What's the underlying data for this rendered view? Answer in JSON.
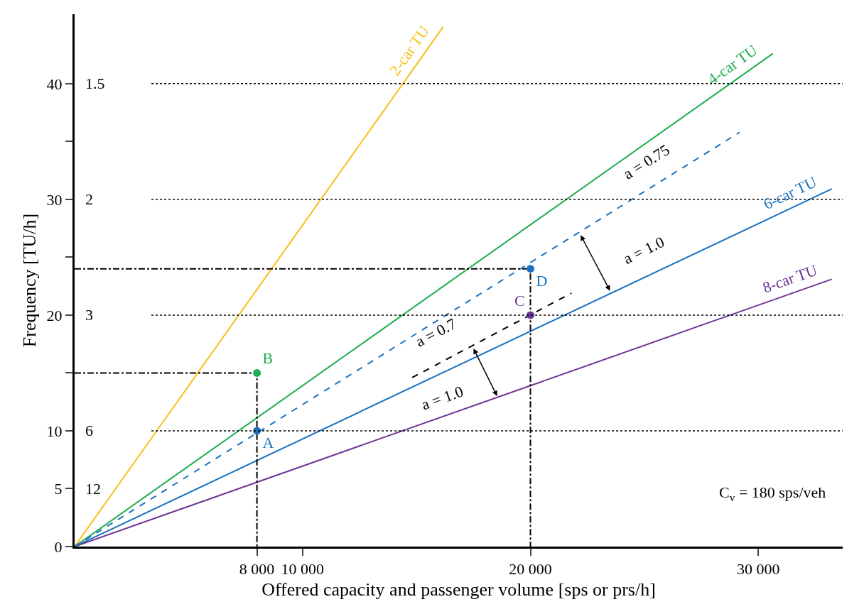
{
  "chart_data": {
    "type": "line",
    "xlabel": "Offered capacity and passenger volume [sps or prs/h]",
    "ylabel": "Frequency [TU/h]",
    "xlim": [
      0,
      33700
    ],
    "ylim": [
      0,
      46
    ],
    "xticks": [
      {
        "value": 8000,
        "label": "8 000"
      },
      {
        "value": 10000,
        "label": "10 000"
      },
      {
        "value": 20000,
        "label": "20 000"
      },
      {
        "value": 30000,
        "label": "30 000"
      }
    ],
    "yticks": [
      0,
      5,
      10,
      {
        "value": 15,
        "label": null
      },
      20,
      {
        "value": 25,
        "label": null
      },
      30,
      {
        "value": 35,
        "label": null
      },
      40
    ],
    "marker": "none",
    "series": [
      {
        "name": "2-car TU",
        "color": "#f5c014",
        "x": [
          0,
          16170
        ],
        "values": [
          0,
          44.9
        ],
        "line_style": "solid"
      },
      {
        "name": "4-car TU",
        "color": "#1fae4f",
        "x": [
          0,
          30640
        ],
        "values": [
          0,
          42.6
        ],
        "line_style": "solid"
      },
      {
        "name": "6-car TU",
        "color": "#1a72c0",
        "x": [
          0,
          33220
        ],
        "values": [
          0,
          30.9
        ],
        "line_style": "solid"
      },
      {
        "name": "8-car TU",
        "color": "#6e3596",
        "x": [
          0,
          33220
        ],
        "values": [
          0,
          23.1
        ],
        "line_style": "solid"
      },
      {
        "color": "#1a72c0",
        "x": [
          0,
          29180
        ],
        "values": [
          0,
          35.8
        ],
        "line_style": "dashed"
      },
      {
        "color": "#000000",
        "x": [
          14810,
          21800
        ],
        "values": [
          14.6,
          21.9
        ],
        "line_style": "dashed"
      },
      {
        "color": "#000000",
        "x": [
          0,
          8000,
          8000
        ],
        "values": [
          15,
          15,
          0
        ],
        "line_style": "dashdot"
      },
      {
        "color": "#000000",
        "x": [
          0,
          20000,
          20000
        ],
        "values": [
          24,
          24,
          0
        ],
        "line_style": "dashdot"
      },
      {
        "name": "A",
        "type": "scatter",
        "marker": "circle",
        "color": "#1a72c0",
        "x": [
          8000
        ],
        "values": [
          10
        ]
      },
      {
        "name": "B",
        "type": "scatter",
        "marker": "circle",
        "color": "#1fae4f",
        "x": [
          8000
        ],
        "values": [
          15
        ]
      },
      {
        "name": "C",
        "type": "scatter",
        "marker": "circle",
        "color": "#6e3596",
        "x": [
          20000
        ],
        "values": [
          20
        ]
      },
      {
        "name": "D",
        "type": "scatter",
        "marker": "circle",
        "color": "#1a72c0",
        "x": [
          20000
        ],
        "values": [
          24
        ]
      }
    ],
    "ref_lines": [
      {
        "axis": "y",
        "value": 40,
        "color": "#000000",
        "line_style": "dotted"
      },
      {
        "axis": "y",
        "value": 30,
        "color": "#000000",
        "line_style": "dotted"
      },
      {
        "axis": "y",
        "value": 20,
        "color": "#000000",
        "line_style": "dotted"
      },
      {
        "axis": "y",
        "value": 10,
        "color": "#000000",
        "line_style": "dotted"
      }
    ],
    "annotations": [
      "a = 0.75",
      "a = 1.0",
      "a = 0.7",
      "a = 1.0",
      "1.5",
      "2",
      "3",
      "6",
      "12",
      "C$_{v}$ = 180 sps/veh"
    ]
  }
}
